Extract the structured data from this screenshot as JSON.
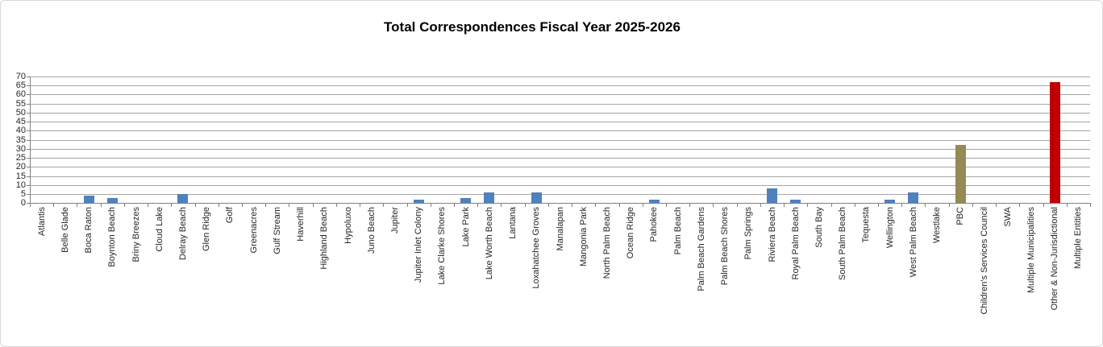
{
  "chart_data": {
    "type": "bar",
    "title": "Total Correspondences Fiscal Year 2025-2026",
    "categories": [
      "Atlantis",
      "Belle Glade",
      "Boca Raton",
      "Boynton Beach",
      "Briny Breezes",
      "Cloud Lake",
      "Delray Beach",
      "Glen Ridge",
      "Golf",
      "Greenacres",
      "Gulf Stream",
      "Haverhill",
      "Highland Beach",
      "Hypoluxo",
      "Juno Beach",
      "Jupiter",
      "Jupiter Inlet Colony",
      "Lake Clarke Shores",
      "Lake Park",
      "Lake Worth Beach",
      "Lantana",
      "Loxahatchee Groves",
      "Manalapan",
      "Mangonia Park",
      "North Palm Beach",
      "Ocean Ridge",
      "Pahokee",
      "Palm Beach",
      "Palm Beach Gardens",
      "Palm Beach Shores",
      "Palm Springs",
      "Riviera Beach",
      "Royal Palm Beach",
      "South Bay",
      "South Palm Beach",
      "Tequesta",
      "Wellington",
      "West Palm Beach",
      "Westlake",
      "PBC",
      "Children's Services Council",
      "SWA",
      "Multiple Municipalities",
      "Other & Non-Jurisdictional",
      "Multiple Entities"
    ],
    "values": [
      0,
      0,
      4,
      3,
      0,
      0,
      5,
      0,
      0,
      0,
      0,
      0,
      0,
      0,
      0,
      0,
      2,
      0,
      3,
      6,
      0,
      6,
      0,
      0,
      0,
      0,
      2,
      0,
      0,
      0,
      0,
      8,
      2,
      0,
      0,
      0,
      2,
      6,
      0,
      32,
      0,
      0,
      0,
      67,
      0
    ],
    "ylim": [
      0,
      70
    ],
    "ytick_interval": 5,
    "ytick_labels": [
      "0",
      "5",
      "10",
      "15",
      "20",
      "25",
      "30",
      "35",
      "40",
      "45",
      "50",
      "55",
      "60",
      "65",
      "70"
    ],
    "grid": true,
    "legend_position": "none",
    "bar_color_default": "#4F81BD",
    "special_bar_colors": {
      "PBC": "#948A54",
      "Other & Non-Jurisdictional": "#C00000"
    },
    "axis_text_color": "#262626",
    "gridline_color": "#A6A6A6",
    "axis_line_color": "#808080",
    "frame_border_color": "#D9D9D9"
  }
}
